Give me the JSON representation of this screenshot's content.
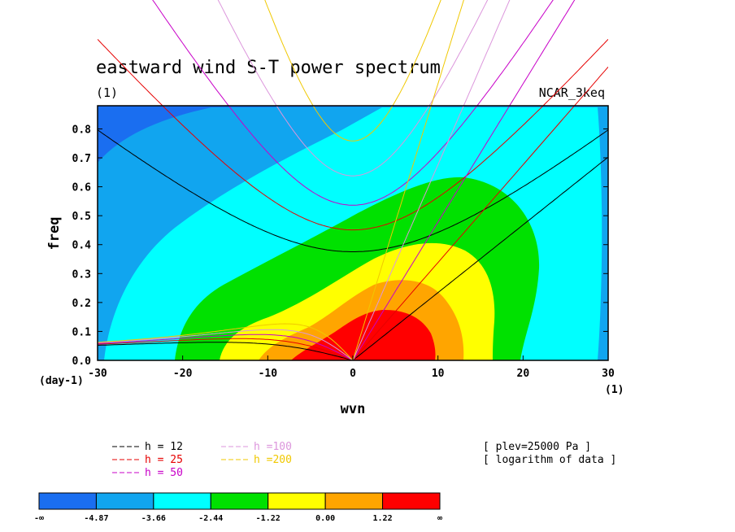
{
  "chart_data": {
    "type": "contour",
    "title": "eastward wind S-T power spectrum",
    "subtitle_left": "(1)",
    "subtitle_right": "NCAR_3keq",
    "xlabel": "wvn",
    "ylabel": "freq",
    "x_unit_label": "(1)",
    "y_unit_label": "(day-1)",
    "xlim": [
      -30,
      30
    ],
    "ylim": [
      0,
      0.88
    ],
    "xticks": [
      -30,
      -20,
      -10,
      0,
      10,
      20,
      30
    ],
    "yticks": [
      0.0,
      0.1,
      0.2,
      0.3,
      0.4,
      0.5,
      0.6,
      0.7,
      0.8
    ],
    "ytick_labels": [
      "0.0",
      "0.1",
      "0.2",
      "0.3",
      "0.4",
      "0.5",
      "0.6",
      "0.7",
      "0.8"
    ],
    "colorbar": {
      "labels": [
        "-∞",
        "-4.87",
        "-3.66",
        "-2.44",
        "-1.22",
        "0.00",
        "1.22",
        "∞"
      ],
      "colors": [
        "#1a6ef0",
        "#11a5ef",
        "#00ffff",
        "#00e100",
        "#ffff00",
        "#ffa500",
        "#ff0000"
      ]
    },
    "dispersion_curves": [
      {
        "label": "h = 12",
        "color": "#000000",
        "h": 12
      },
      {
        "label": "h = 25",
        "color": "#e60000",
        "h": 25
      },
      {
        "label": "h = 50",
        "color": "#c800c8",
        "h": 50
      },
      {
        "label": "h =100",
        "color": "#dc96dc",
        "h": 100
      },
      {
        "label": "h =200",
        "color": "#f0c800",
        "h": 200
      }
    ],
    "annotations": [
      "[ plev=25000 Pa ]",
      "[ logarithm of data ]"
    ]
  }
}
